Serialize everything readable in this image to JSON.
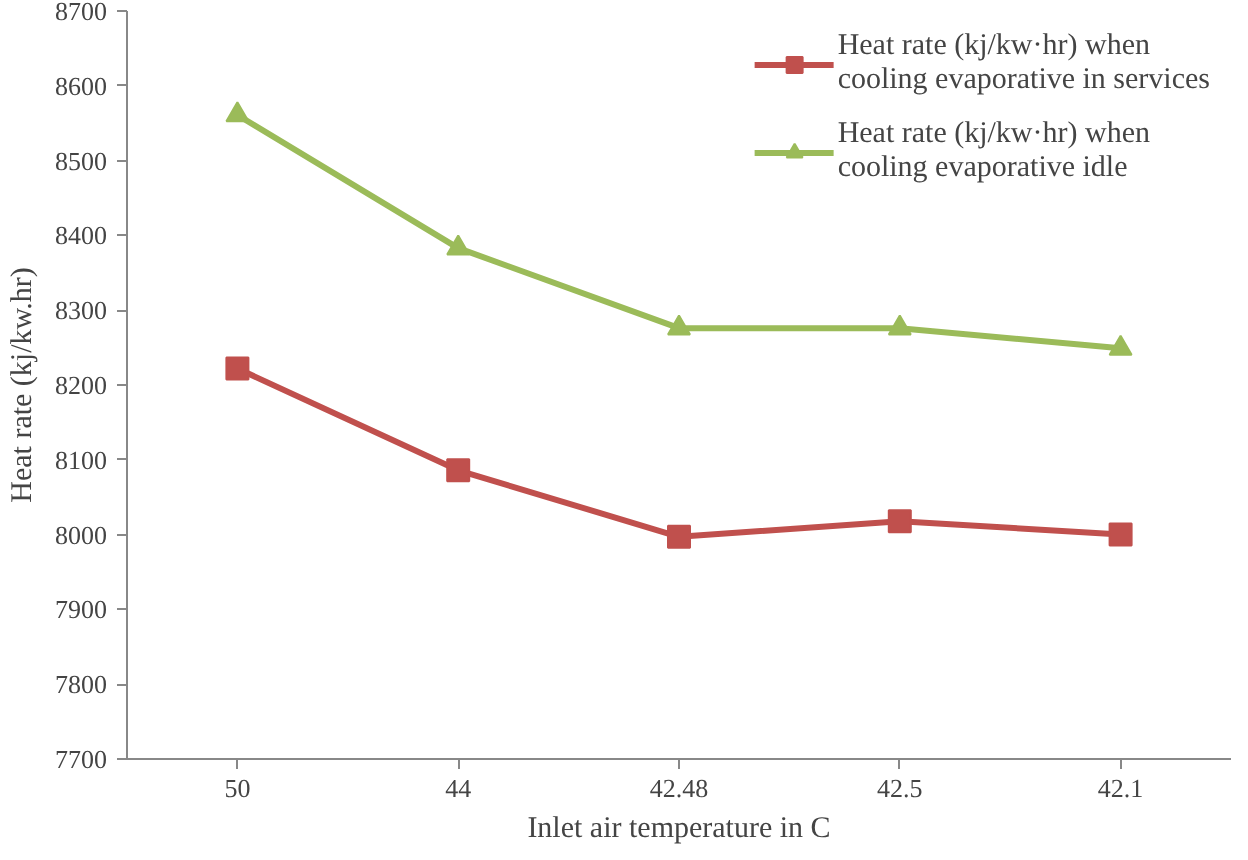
{
  "chart_data": {
    "type": "line",
    "xlabel": "Inlet air temperature in C",
    "ylabel": "Heat rate (kj/kw.hr)",
    "categories": [
      "50",
      "44",
      "42.48",
      "42.5",
      "42.1"
    ],
    "ylim": [
      7700,
      8700
    ],
    "yticks": [
      7700,
      7800,
      7900,
      8000,
      8100,
      8200,
      8300,
      8400,
      8500,
      8600,
      8700
    ],
    "grid": false,
    "legend": "top right",
    "series": [
      {
        "name": "Heat rate (kj/kw·hr) when cooling evaporative in services",
        "color": "#c0504d",
        "marker": "square",
        "values": [
          8222,
          8086,
          7997,
          8018,
          8000
        ]
      },
      {
        "name": "Heat rate (kj/kw·hr) when cooling evaporative idle",
        "color": "#9bbb59",
        "marker": "triangle",
        "values": [
          8561,
          8383,
          8276,
          8276,
          8249
        ]
      }
    ]
  }
}
